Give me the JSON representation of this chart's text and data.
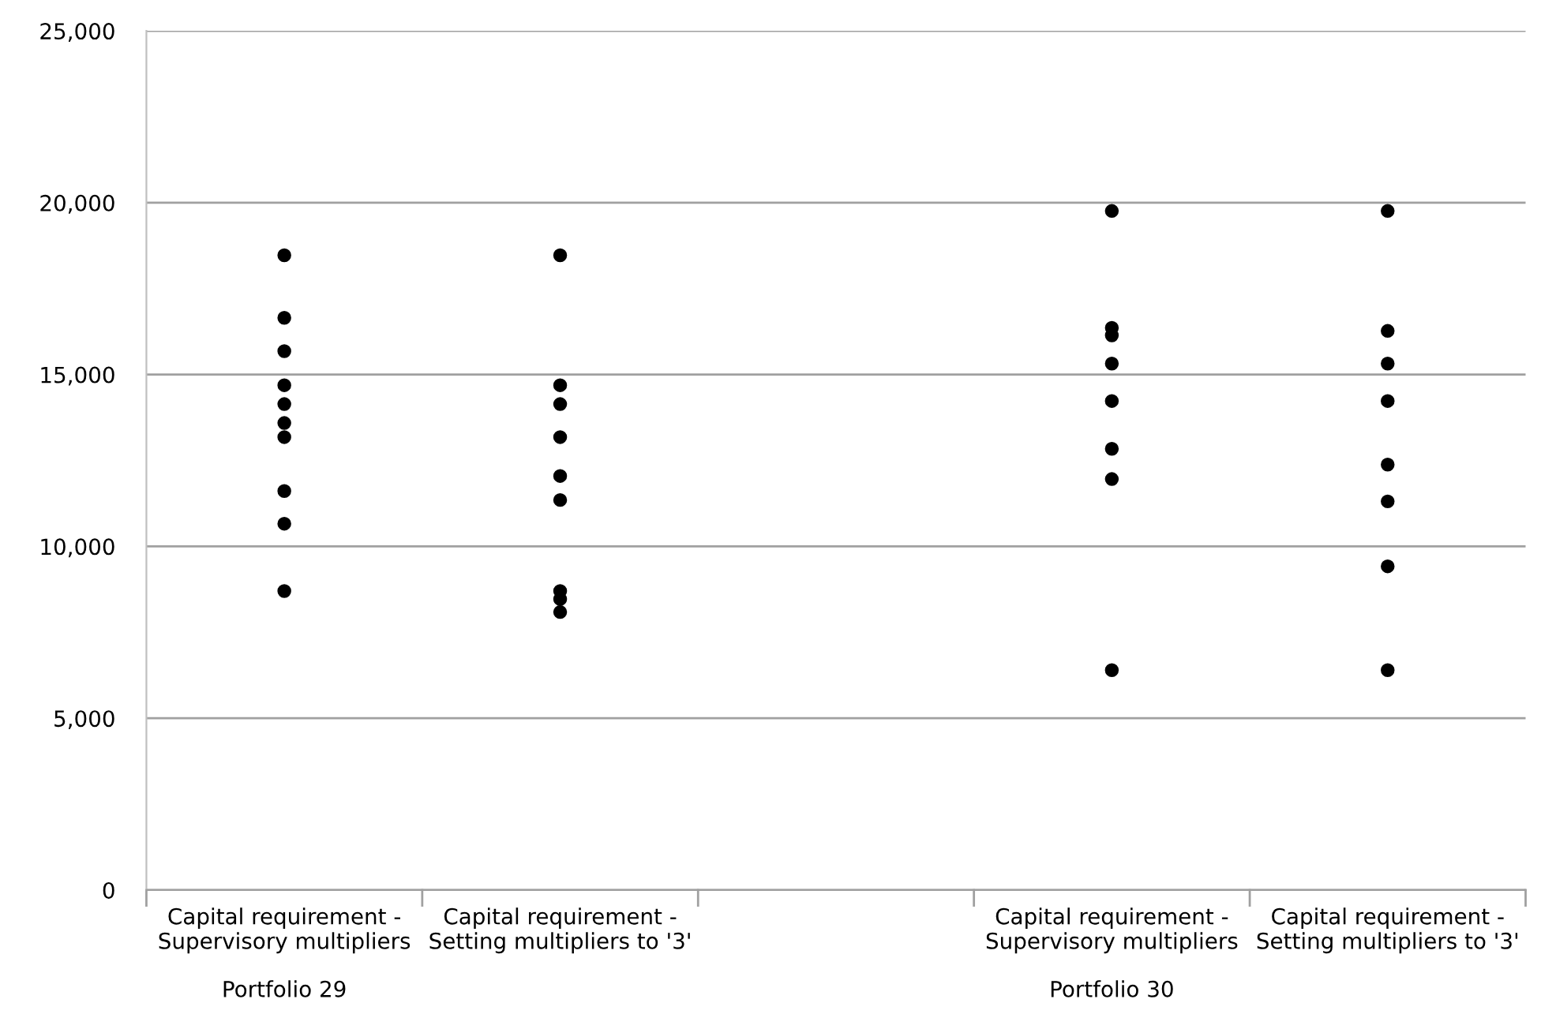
{
  "chart_data": {
    "type": "scatter",
    "categories": [
      "Capital requirement -\nSupervisory multipliers",
      "Capital requirement -\nSetting multipliers to '3'",
      null,
      "Capital requirement -\nSupervisory multipliers",
      "Capital requirement -\nSetting multipliers to '3'"
    ],
    "series": [
      {
        "color": "#000000",
        "values": [
          18470,
          18470,
          null,
          19760,
          19760
        ]
      },
      {
        "color": "#000000",
        "values": [
          16650,
          14690,
          null,
          16360,
          16270
        ]
      },
      {
        "color": "#000000",
        "values": [
          15680,
          null,
          null,
          16140,
          15320
        ]
      },
      {
        "color": "#000000",
        "values": [
          14690,
          14140,
          null,
          15320,
          14230
        ]
      },
      {
        "color": "#000000",
        "values": [
          14140,
          13180,
          null,
          14230,
          12380
        ]
      },
      {
        "color": "#000000",
        "values": [
          13590,
          12050,
          null,
          12840,
          11310
        ]
      },
      {
        "color": "#000000",
        "values": [
          13180,
          11350,
          null,
          11960,
          9420
        ]
      },
      {
        "color": "#000000",
        "values": [
          11610,
          8700,
          null,
          6400,
          6400
        ]
      },
      {
        "color": "#000000",
        "values": [
          10660,
          8470,
          null,
          null,
          null
        ]
      },
      {
        "color": "#000000",
        "values": [
          null,
          8090,
          null,
          null,
          null
        ]
      },
      {
        "color": "#000000",
        "values": [
          8700,
          null,
          null,
          null,
          null
        ]
      }
    ],
    "ylim": [
      0,
      25000
    ],
    "yticks": [
      0,
      {
        "value": 5000,
        "label": "5,000"
      },
      {
        "value": 10000,
        "label": "10,000"
      },
      {
        "value": 15000,
        "label": "15,000"
      },
      {
        "value": 20000,
        "label": "20,000"
      },
      {
        "value": 25000,
        "label": "25,000"
      }
    ],
    "grid": "y",
    "marker": "circle",
    "legend": false,
    "annotations": [
      "Portfolio 29",
      "Portfolio 30"
    ]
  }
}
